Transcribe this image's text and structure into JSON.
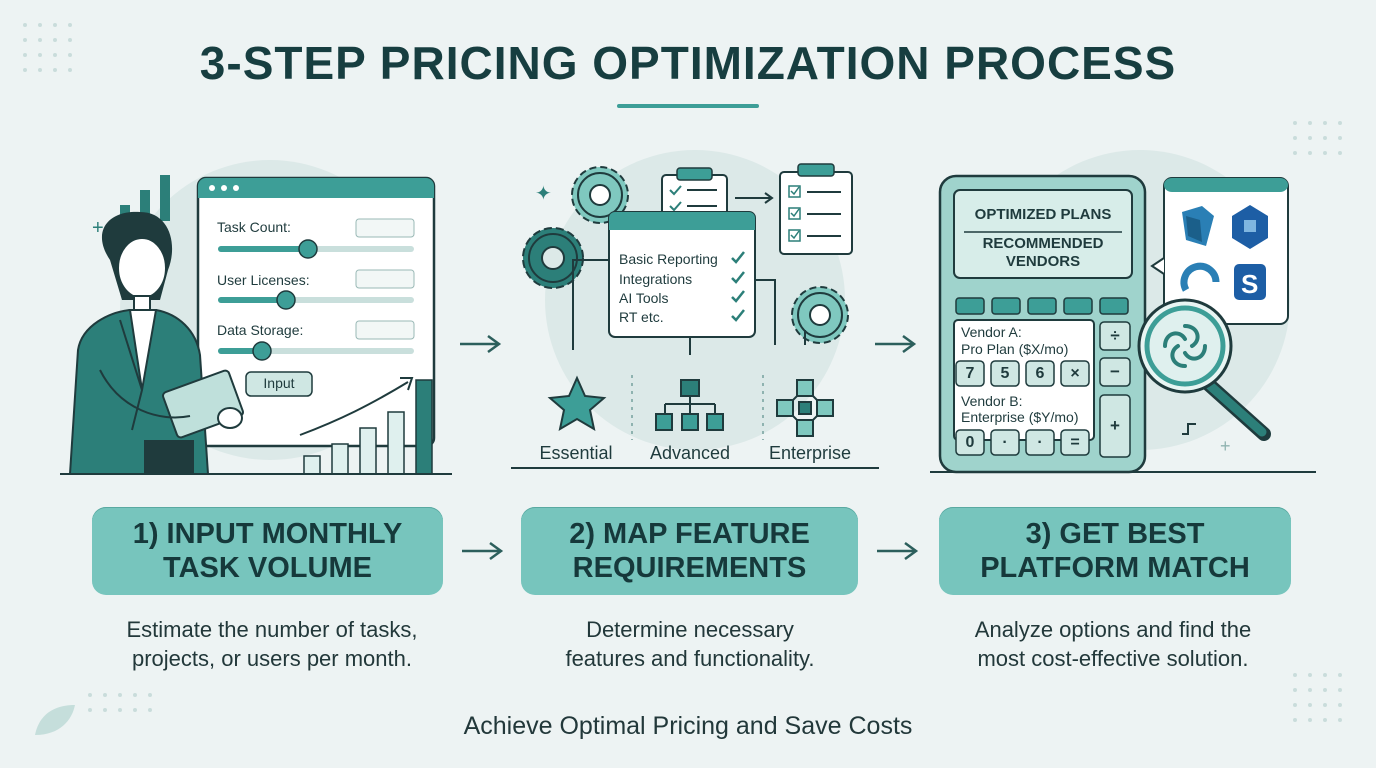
{
  "title": "3-STEP PRICING OPTIMIZATION PROCESS",
  "illus1": {
    "task_count": "Task Count:",
    "user_licenses": "User Licenses:",
    "data_storage": "Data Storage:",
    "input_btn": "Input"
  },
  "illus2": {
    "features": [
      "Basic Reporting",
      "Integrations",
      "AI Tools",
      "RT etc."
    ],
    "tiers": [
      "Essential",
      "Advanced",
      "Enterprise"
    ]
  },
  "illus3": {
    "screen_line1": "OPTIMIZED PLANS",
    "screen_line2": "RECOMMENDED",
    "screen_line3": "VENDORS",
    "vendor_a_line1": "Vendor A:",
    "vendor_a_line2": "Pro Plan ($X/mo)",
    "vendor_b_line1": "Vendor B:",
    "vendor_b_line2": "Enterprise ($Y/mo)",
    "keys_row1": [
      "7",
      "5",
      "6",
      "×"
    ],
    "keys_row2": [
      "0",
      "·",
      "·",
      "="
    ],
    "side_keys": [
      "÷",
      "−",
      "+"
    ]
  },
  "steps": [
    {
      "line1": "1) INPUT MONTHLY",
      "line2": "TASK VOLUME",
      "desc1": "Estimate the number of tasks,",
      "desc2": "projects, or users per month."
    },
    {
      "line1": "2) MAP FEATURE",
      "line2": "REQUIREMENTS",
      "desc1": "Determine necessary",
      "desc2": "features and functionality."
    },
    {
      "line1": "3) GET BEST",
      "line2": "PLATFORM MATCH",
      "desc1": "Analyze options and find the",
      "desc2": "most cost-effective solution."
    }
  ],
  "footer": "Achieve Optimal Pricing and Save Costs",
  "colors": {
    "accent": "#3d9e97",
    "box": "#77c5bd",
    "dark": "#173e40",
    "bg": "#edf3f3"
  }
}
